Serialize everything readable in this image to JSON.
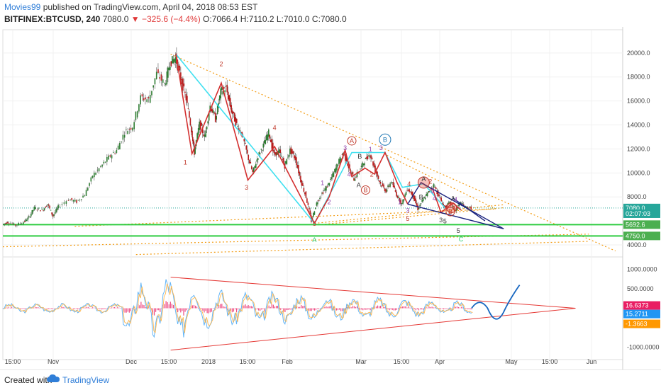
{
  "header": {
    "author": "Movies99",
    "published_text": "published on TradingView.com, April 04, 2018 08:53 EST",
    "symbol": "BITFINEX:BTCUSD, 240",
    "last": "7080.0",
    "change": "▼ −325.6 (−4.4%)",
    "ohlc": "O:7066.4 H:7110.2 L:7010.0 C:7080.0"
  },
  "footer": {
    "created_with": "Created with",
    "brand": "TradingView"
  },
  "chart_data": {
    "type": "candlestick",
    "price_axis": {
      "ticks": [
        "20000.0",
        "18000.0",
        "16000.0",
        "14000.0",
        "12000.0",
        "10000.0",
        "8000.0",
        "4000.0"
      ],
      "ylim": [
        3000,
        21700
      ]
    },
    "price_tags": [
      {
        "label": "7080.0",
        "value": 7080,
        "color": "#26a69a"
      },
      {
        "label": "02:07:03",
        "value": 6600,
        "color": "#26a69a"
      },
      {
        "label": "5692.6",
        "value": 5692.6,
        "color": "#4caf50"
      },
      {
        "label": "4750.0",
        "value": 4750,
        "color": "#4caf50"
      }
    ],
    "time_axis": [
      "15:00",
      "Nov",
      "Dec",
      "15:00",
      "2018",
      "15:00",
      "Feb",
      "Mar",
      "15:00",
      "Apr",
      "May",
      "15:00",
      "Jun"
    ],
    "price_path": [
      [
        0,
        5700
      ],
      [
        0.02,
        5900
      ],
      [
        0.05,
        5650
      ],
      [
        0.08,
        5900
      ],
      [
        0.1,
        6300
      ],
      [
        0.12,
        7100
      ],
      [
        0.15,
        6900
      ],
      [
        0.17,
        7400
      ],
      [
        0.19,
        6400
      ],
      [
        0.21,
        7200
      ],
      [
        0.25,
        7800
      ],
      [
        0.28,
        7600
      ],
      [
        0.31,
        8200
      ],
      [
        0.34,
        9800
      ],
      [
        0.37,
        10500
      ],
      [
        0.4,
        11300
      ],
      [
        0.43,
        11900
      ],
      [
        0.46,
        13400
      ],
      [
        0.49,
        13900
      ],
      [
        0.52,
        16300
      ],
      [
        0.55,
        16100
      ],
      [
        0.58,
        18300
      ],
      [
        0.61,
        17400
      ],
      [
        0.63,
        19200
      ],
      [
        0.65,
        19600
      ],
      [
        0.67,
        17900
      ],
      [
        0.69,
        16200
      ],
      [
        0.71,
        13600
      ],
      [
        0.72,
        11700
      ],
      [
        0.74,
        14100
      ],
      [
        0.76,
        13000
      ],
      [
        0.78,
        15600
      ],
      [
        0.8,
        14500
      ],
      [
        0.82,
        16800
      ],
      [
        0.84,
        17100
      ],
      [
        0.86,
        15200
      ],
      [
        0.88,
        14000
      ],
      [
        0.9,
        13200
      ],
      [
        0.92,
        11500
      ],
      [
        0.94,
        10000
      ],
      [
        0.96,
        11400
      ],
      [
        0.98,
        12300
      ],
      [
        1.0,
        13400
      ],
      [
        1.02,
        11500
      ],
      [
        1.04,
        11800
      ],
      [
        1.06,
        10600
      ],
      [
        1.08,
        11900
      ],
      [
        1.1,
        11200
      ],
      [
        1.12,
        9400
      ],
      [
        1.14,
        8000
      ],
      [
        1.16,
        6000
      ],
      [
        1.18,
        7500
      ],
      [
        1.2,
        8300
      ],
      [
        1.22,
        8900
      ],
      [
        1.24,
        9800
      ],
      [
        1.26,
        10800
      ],
      [
        1.28,
        11700
      ],
      [
        1.3,
        10500
      ],
      [
        1.32,
        9500
      ],
      [
        1.34,
        10200
      ],
      [
        1.36,
        11000
      ],
      [
        1.38,
        11600
      ],
      [
        1.4,
        10200
      ],
      [
        1.42,
        9100
      ],
      [
        1.44,
        8500
      ],
      [
        1.46,
        9300
      ],
      [
        1.48,
        8200
      ],
      [
        1.5,
        7400
      ],
      [
        1.52,
        8700
      ],
      [
        1.54,
        8200
      ],
      [
        1.56,
        7000
      ],
      [
        1.58,
        7800
      ],
      [
        1.6,
        8400
      ],
      [
        1.62,
        9000
      ],
      [
        1.64,
        8000
      ],
      [
        1.66,
        7100
      ],
      [
        1.68,
        7500
      ],
      [
        1.7,
        6900
      ],
      [
        1.72,
        7500
      ],
      [
        1.74,
        7100
      ],
      [
        1.76,
        7080
      ]
    ],
    "wave_labels": [
      {
        "text": "1",
        "t": 0.685,
        "price": 10700,
        "color": "#c0392b"
      },
      {
        "text": "2",
        "t": 0.82,
        "price": 18900,
        "color": "#c0392b"
      },
      {
        "text": "3",
        "t": 0.915,
        "price": 8600,
        "color": "#c0392b"
      },
      {
        "text": "4",
        "t": 1.02,
        "price": 13600,
        "color": "#c0392b"
      },
      {
        "text": "5",
        "t": 1.17,
        "price": 5600,
        "color": "#c0392b"
      },
      {
        "text": "A",
        "t": 1.17,
        "price": 4250,
        "color": "#2ecc71",
        "big": true
      },
      {
        "text": "1",
        "t": 1.2,
        "price": 9000,
        "color": "#8e44ad"
      },
      {
        "text": "2",
        "t": 1.225,
        "price": 7400,
        "color": "#8e44ad"
      },
      {
        "text": "3",
        "t": 1.285,
        "price": 11900,
        "color": "#8e44ad"
      },
      {
        "text": "4",
        "t": 1.3,
        "price": 9700,
        "color": "#8e44ad"
      },
      {
        "text": "A",
        "t": 1.31,
        "price": 12500,
        "color": "#c0392b",
        "circle": true
      },
      {
        "text": "B",
        "t": 1.34,
        "price": 11200,
        "color": "#333333"
      },
      {
        "text": "A",
        "t": 1.336,
        "price": 8800,
        "color": "#333333"
      },
      {
        "text": "B",
        "t": 1.362,
        "price": 8400,
        "color": "#c0392b",
        "circle": true
      },
      {
        "text": "2",
        "t": 1.385,
        "price": 9700,
        "color": "#c0392b"
      },
      {
        "text": "1",
        "t": 1.38,
        "price": 11800,
        "color": "#8e44ad"
      },
      {
        "text": "3",
        "t": 1.42,
        "price": 11900,
        "color": "#8e44ad"
      },
      {
        "text": "B",
        "t": 1.435,
        "price": 12600,
        "color": "#1f77b4",
        "circle": true,
        "big": true
      },
      {
        "text": "1",
        "t": 1.49,
        "price": 7400,
        "color": "#8e44ad"
      },
      {
        "text": "3",
        "t": 1.52,
        "price": 6700,
        "color": "#8e44ad"
      },
      {
        "text": "4",
        "t": 1.525,
        "price": 8900,
        "color": "#c0392b"
      },
      {
        "text": "5",
        "t": 1.52,
        "price": 6000,
        "color": "#c0392b"
      },
      {
        "text": "A",
        "t": 1.58,
        "price": 9300,
        "color": "#333333"
      },
      {
        "text": "2",
        "t": 1.605,
        "price": 9100,
        "color": "#c0392b"
      },
      {
        "text": "B",
        "t": 1.57,
        "price": 7800,
        "color": "#333333"
      },
      {
        "text": "2",
        "t": 1.615,
        "price": 8300,
        "color": "#8e44ad"
      },
      {
        "text": "4",
        "t": 1.62,
        "price": 7700,
        "color": "#8e44ad"
      },
      {
        "text": "3",
        "t": 1.645,
        "price": 5900,
        "color": "#333333"
      },
      {
        "text": "5",
        "t": 1.66,
        "price": 5800,
        "color": "#333333"
      },
      {
        "text": "A",
        "t": 1.69,
        "price": 7700,
        "color": "#333333"
      },
      {
        "text": "4",
        "t": 1.7,
        "price": 7600,
        "color": "#8e44ad"
      },
      {
        "text": "B",
        "t": 1.68,
        "price": 6600,
        "color": "#c0392b",
        "circle": true
      },
      {
        "text": "5",
        "t": 1.71,
        "price": 5000,
        "color": "#333333"
      },
      {
        "text": "C",
        "t": 1.72,
        "price": 4300,
        "color": "#2ecc71",
        "big": true
      }
    ],
    "oscillator": {
      "ticks": [
        "1000.0000",
        "500.0000",
        "-1000.0000"
      ],
      "ylim": [
        -1250,
        1250
      ],
      "tags": [
        {
          "label": "16.6373",
          "value": 16.6373,
          "color": "#e91e63"
        },
        {
          "label": "15.2711",
          "value": 15.2711,
          "color": "#2196f3"
        },
        {
          "label": "-1.3663",
          "value": -1.3663,
          "color": "#ff9800"
        }
      ]
    }
  }
}
